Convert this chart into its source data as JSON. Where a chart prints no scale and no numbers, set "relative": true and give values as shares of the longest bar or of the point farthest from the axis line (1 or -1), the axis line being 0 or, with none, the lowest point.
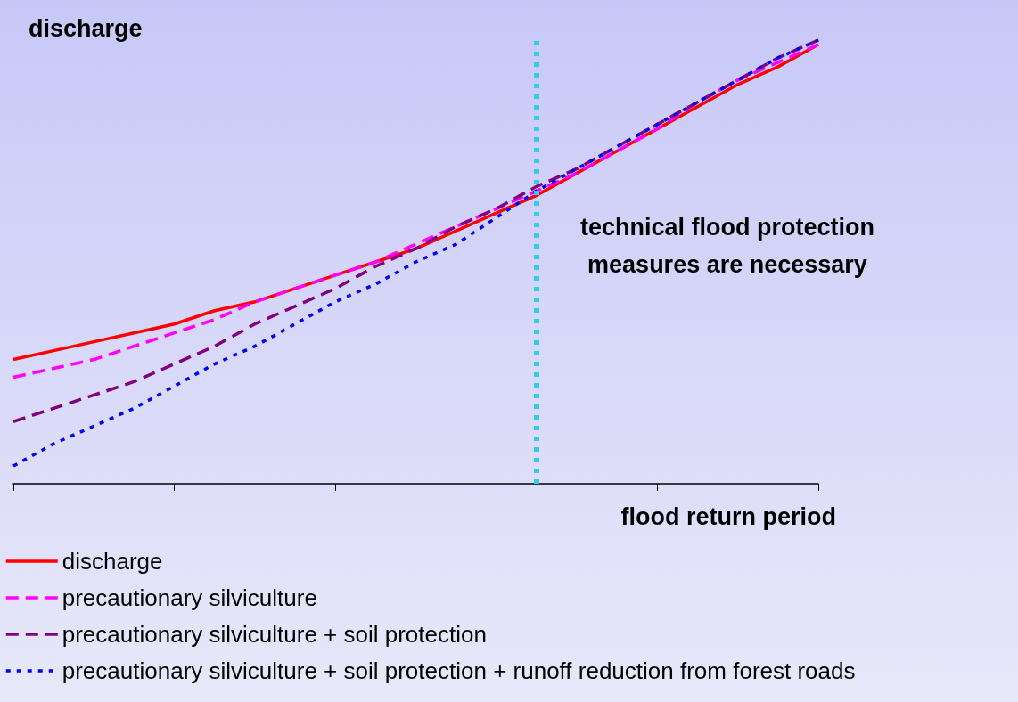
{
  "chart_data": {
    "type": "line",
    "relative": true,
    "ylabel": "discharge",
    "xlabel": "flood return period",
    "categories": [
      null,
      null,
      null,
      null,
      null,
      null,
      null,
      null,
      null,
      null,
      null,
      null,
      null,
      null,
      null,
      null,
      null,
      null,
      null,
      null,
      null
    ],
    "grid": false,
    "legend": "bottom left",
    "marker": "none",
    "series": [
      {
        "name": "discharge",
        "color": "#ff0000",
        "line_style": "solid",
        "values": [
          0.28,
          0.3,
          0.32,
          0.34,
          0.36,
          0.39,
          0.41,
          0.44,
          0.47,
          0.5,
          0.53,
          0.57,
          0.61,
          0.65,
          0.7,
          0.75,
          0.8,
          0.85,
          0.9,
          0.94,
          0.99
        ]
      },
      {
        "name": "precautionary silviculture",
        "color": "#ff00ff",
        "line_style": "dashed",
        "values": [
          0.24,
          0.26,
          0.28,
          0.31,
          0.34,
          0.37,
          0.41,
          0.44,
          0.47,
          0.5,
          0.54,
          0.58,
          0.62,
          0.66,
          0.7,
          0.75,
          0.8,
          0.86,
          0.91,
          0.95,
          0.99
        ]
      },
      {
        "name": "precautionary silviculture + soil protection",
        "color": "#800080",
        "line_style": "dashed",
        "values": [
          0.14,
          0.17,
          0.2,
          0.23,
          0.27,
          0.31,
          0.36,
          0.4,
          0.44,
          0.49,
          0.53,
          0.58,
          0.62,
          0.67,
          0.71,
          0.76,
          0.81,
          0.86,
          0.91,
          0.96,
          1.0
        ]
      },
      {
        "name": "precautionary silviculture + soil protection + runoff reduction from forest roads",
        "color": "#0000ff",
        "line_style": "dotted",
        "values": [
          0.04,
          0.09,
          0.13,
          0.17,
          0.22,
          0.27,
          0.31,
          0.36,
          0.41,
          0.45,
          0.5,
          0.54,
          0.6,
          0.66,
          0.71,
          0.76,
          0.81,
          0.86,
          0.91,
          0.96,
          1
        ]
      }
    ],
    "annotations": [
      "technical flood protection\nmeasures are necessary"
    ]
  }
}
